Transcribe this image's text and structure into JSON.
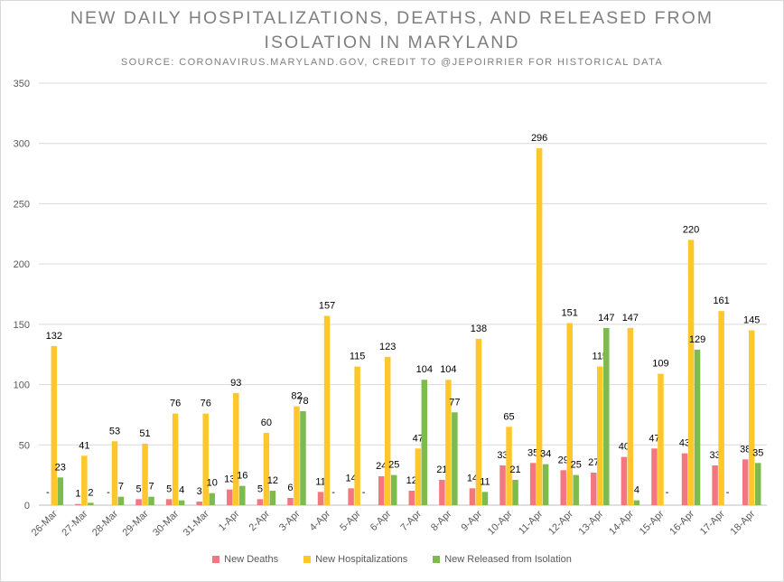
{
  "chart_data": {
    "type": "bar",
    "title_line1": "NEW DAILY HOSPITALIZATIONS, DEATHS, AND RELEASED FROM",
    "title_line2": "ISOLATION IN MARYLAND",
    "subtitle": "SOURCE: CORONAVIRUS.MARYLAND.GOV, CREDIT TO @JEPOIRRIER FOR HISTORICAL DATA",
    "ylim": [
      0,
      350
    ],
    "yticks": [
      0,
      50,
      100,
      150,
      200,
      250,
      300,
      350
    ],
    "grid": true,
    "legend_position": "bottom",
    "categories": [
      "26-Mar",
      "27-Mar",
      "28-Mar",
      "29-Mar",
      "30-Mar",
      "31-Mar",
      "1-Apr",
      "2-Apr",
      "3-Apr",
      "4-Apr",
      "5-Apr",
      "6-Apr",
      "7-Apr",
      "8-Apr",
      "9-Apr",
      "10-Apr",
      "11-Apr",
      "12-Apr",
      "13-Apr",
      "14-Apr",
      "15-Apr",
      "16-Apr",
      "17-Apr",
      "18-Apr"
    ],
    "series": [
      {
        "name": "New Deaths",
        "color": "#f4777f",
        "values": [
          0,
          1,
          0,
          5,
          5,
          3,
          13,
          5,
          6,
          11,
          14,
          24,
          12,
          21,
          14,
          33,
          35,
          29,
          27,
          40,
          47,
          43,
          33,
          38
        ],
        "labels": [
          "-",
          "1",
          "-",
          "5",
          "5",
          "3",
          "13",
          "5",
          "6",
          "11",
          "14",
          "24",
          "12",
          "21",
          "14",
          "33",
          "35",
          "29",
          "27",
          "40",
          "47",
          "43",
          "33",
          "38"
        ]
      },
      {
        "name": "New Hospitalizations",
        "color": "#ffc72c",
        "values": [
          132,
          41,
          53,
          51,
          76,
          76,
          93,
          60,
          82,
          157,
          115,
          123,
          47,
          104,
          138,
          65,
          296,
          151,
          115,
          147,
          109,
          220,
          161,
          145
        ],
        "labels": [
          "132",
          "41",
          "53",
          "51",
          "76",
          "76",
          "93",
          "60",
          "82",
          "157",
          "115",
          "123",
          "47",
          "104",
          "138",
          "65",
          "296",
          "151",
          "115",
          "147",
          "109",
          "220",
          "161",
          "145"
        ]
      },
      {
        "name": "New Released from Isolation",
        "color": "#7dbb4c",
        "values": [
          23,
          2,
          7,
          7,
          4,
          10,
          16,
          12,
          78,
          0,
          0,
          25,
          104,
          77,
          11,
          21,
          34,
          25,
          147,
          4,
          0,
          129,
          0,
          35
        ],
        "labels": [
          "23",
          "2",
          "7",
          "7",
          "4",
          "10",
          "16",
          "12",
          "78",
          "-",
          "-",
          "25",
          "104",
          "77",
          "11",
          "21",
          "34",
          "25",
          "147",
          "4",
          "-",
          "129",
          "-",
          "35"
        ]
      }
    ]
  }
}
